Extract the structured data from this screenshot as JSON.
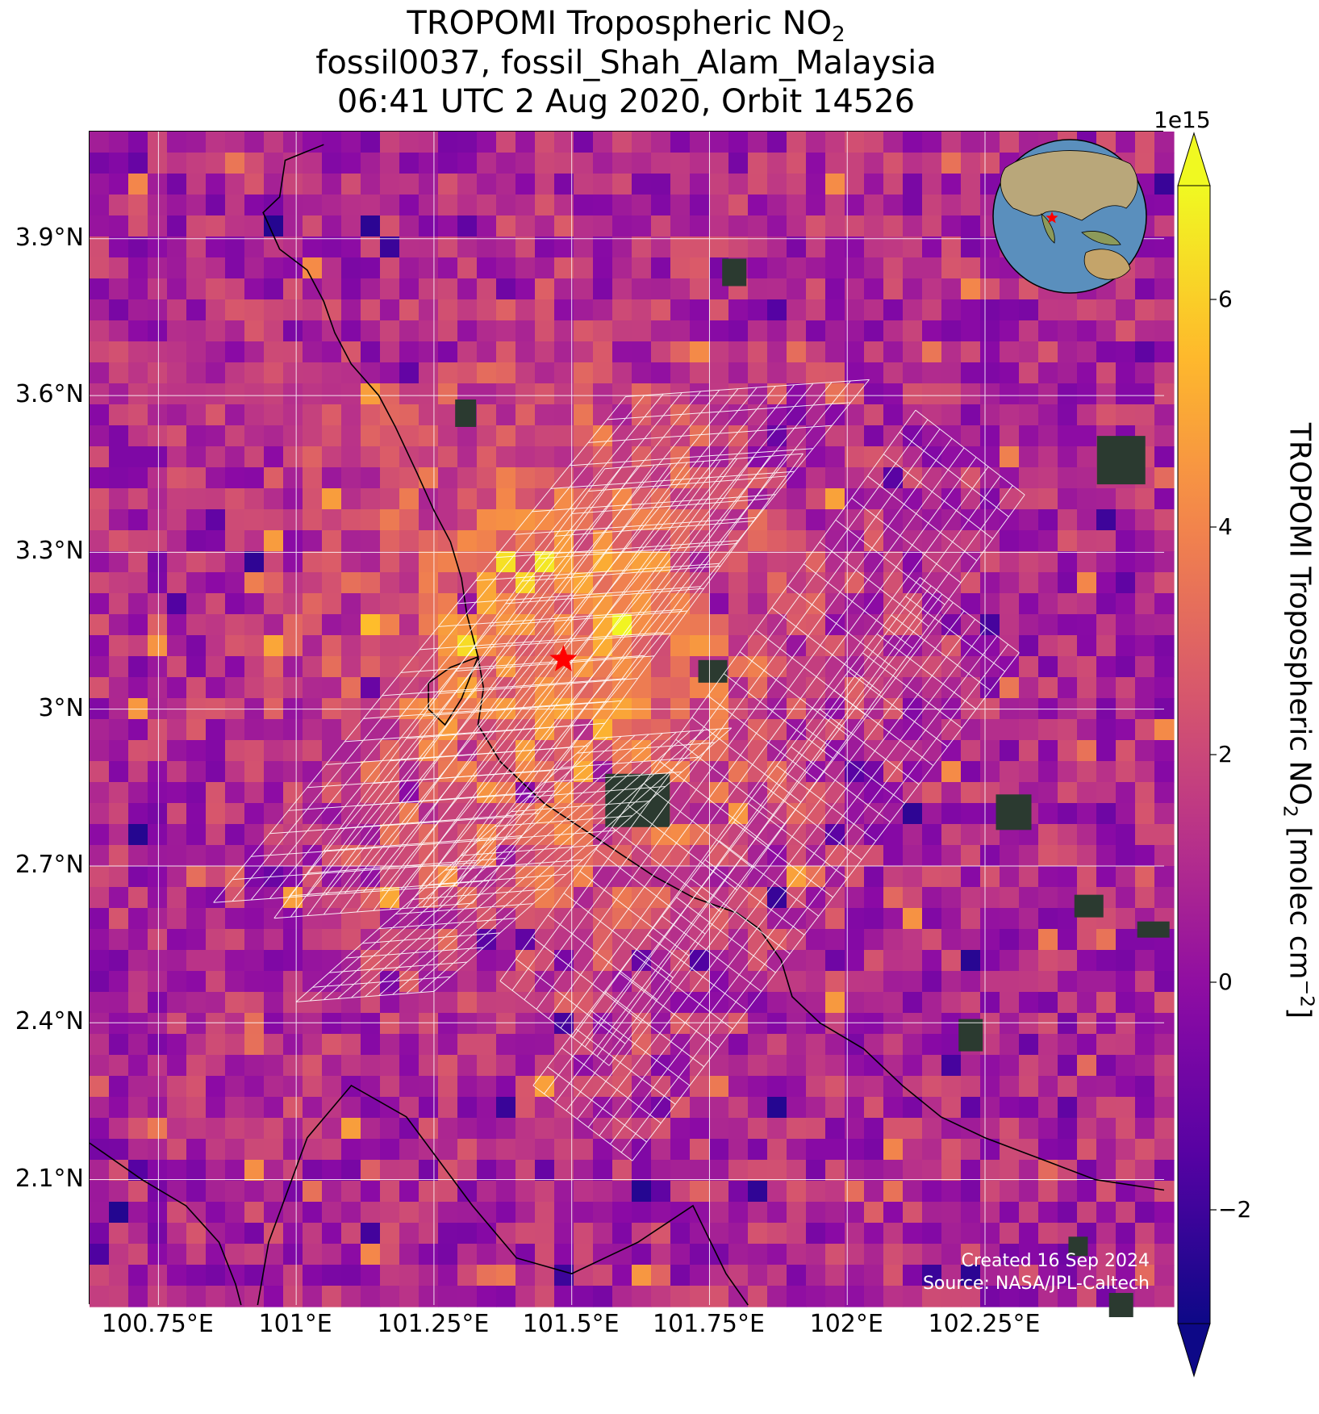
{
  "title": {
    "line1_prefix": "TROPOMI Tropospheric NO",
    "line1_sub": "2",
    "line2": "fossil0037, fossil_Shah_Alam_Malaysia",
    "line3": "06:41 UTC 2 Aug 2020, Orbit 14526"
  },
  "map": {
    "lat_ticks": [
      "3.9°N",
      "3.6°N",
      "3.3°N",
      "3°N",
      "2.7°N",
      "2.4°N",
      "2.1°N"
    ],
    "lon_ticks": [
      "100.75°E",
      "101°E",
      "101.25°E",
      "101.5°E",
      "101.75°E",
      "102°E",
      "102.25°E"
    ],
    "lat_values": [
      3.9,
      3.6,
      3.3,
      3.0,
      2.7,
      2.4,
      2.1
    ],
    "lon_values": [
      100.75,
      101.0,
      101.25,
      101.5,
      101.75,
      102.0,
      102.25
    ],
    "extent": {
      "lon_min": 100.625,
      "lon_max": 102.575,
      "lat_min": 1.86,
      "lat_max": 4.105
    },
    "marker": {
      "name": "Shah Alam",
      "lat": 3.095,
      "lon": 101.485,
      "color": "#ff0000"
    },
    "credit_line1": "Created 16 Sep 2024",
    "credit_line2": "Source: NASA/JPL-Caltech"
  },
  "colorbar": {
    "colormap": "plasma",
    "multiplier": "1e15",
    "vmin": -3.0,
    "vmax": 7.0,
    "ticks": [
      "6",
      "4",
      "2",
      "0",
      "−2"
    ],
    "tick_values": [
      6,
      4,
      2,
      0,
      -2
    ],
    "label_prefix": "TROPOMI Tropospheric NO",
    "label_sub": "2",
    "label_mid": " [molec cm",
    "label_sup": "−2",
    "label_suffix": "]"
  }
}
